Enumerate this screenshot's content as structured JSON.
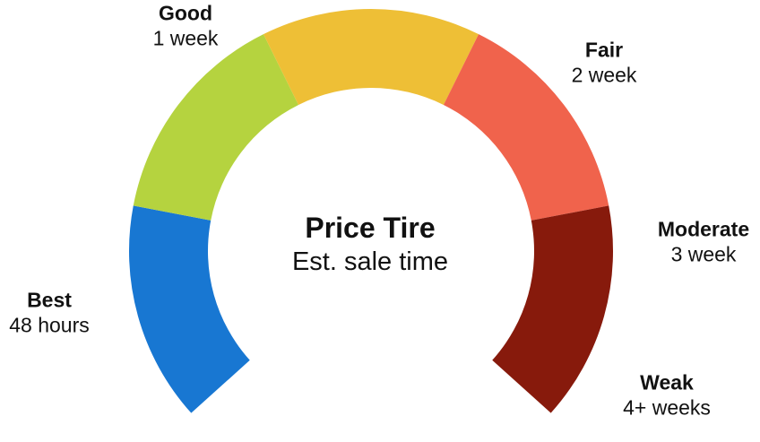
{
  "center": {
    "title": "Price Tire",
    "subtitle": "Est. sale time"
  },
  "tiers": [
    {
      "name": "Best",
      "time": "48 hours",
      "color": "#1877D2",
      "share": 0.2
    },
    {
      "name": "Good",
      "time": "1 week",
      "color": "#B5D33F",
      "share": 0.2
    },
    {
      "name": "Fair",
      "time": "2 week",
      "color": "#EEBF36",
      "share": 0.2
    },
    {
      "name": "Moderate",
      "time": "3 week",
      "color": "#F0634C",
      "share": 0.2
    },
    {
      "name": "Weak",
      "time": "4+ weeks",
      "color": "#871A0C",
      "share": 0.2
    }
  ]
}
